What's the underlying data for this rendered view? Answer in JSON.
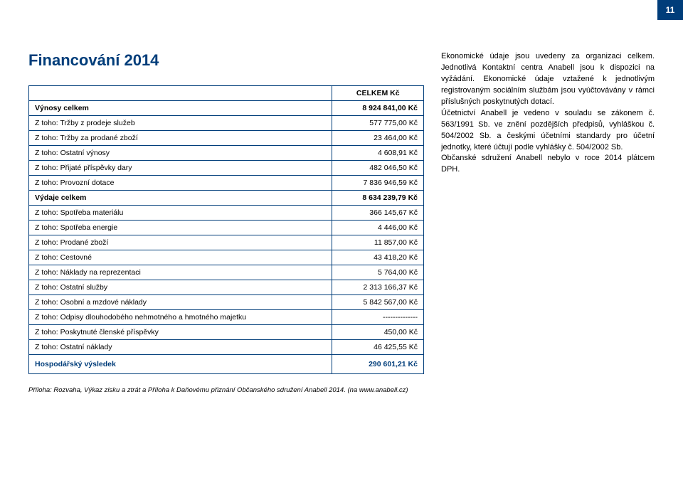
{
  "pageNumber": "11",
  "title": "Financování 2014",
  "table": {
    "headerLabel": "",
    "headerValue": "CELKEM Kč",
    "rows": [
      {
        "label": "Výnosy celkem",
        "value": "8 924 841,00 Kč",
        "bold": true
      },
      {
        "label": "Z toho: Tržby z prodeje služeb",
        "value": "577 775,00 Kč",
        "bold": false
      },
      {
        "label": "Z toho: Tržby za prodané zboží",
        "value": "23 464,00 Kč",
        "bold": false
      },
      {
        "label": "Z toho: Ostatní výnosy",
        "value": "4 608,91 Kč",
        "bold": false
      },
      {
        "label": "Z toho: Přijaté příspěvky dary",
        "value": "482 046,50 Kč",
        "bold": false
      },
      {
        "label": "Z toho: Provozní dotace",
        "value": "7 836 946,59 Kč",
        "bold": false
      },
      {
        "label": "Výdaje celkem",
        "value": "8 634 239,79 Kč",
        "bold": true
      },
      {
        "label": "Z toho: Spotřeba materiálu",
        "value": "366 145,67 Kč",
        "bold": false
      },
      {
        "label": "Z toho: Spotřeba energie",
        "value": "4 446,00 Kč",
        "bold": false
      },
      {
        "label": "Z toho: Prodané zboží",
        "value": "11 857,00 Kč",
        "bold": false
      },
      {
        "label": "Z toho: Cestovné",
        "value": "43 418,20 Kč",
        "bold": false
      },
      {
        "label": "Z toho: Náklady na reprezentaci",
        "value": "5 764,00 Kč",
        "bold": false
      },
      {
        "label": "Z toho: Ostatní služby",
        "value": "2 313 166,37 Kč",
        "bold": false
      },
      {
        "label": "Z toho: Osobní a mzdové náklady",
        "value": "5 842 567,00 Kč",
        "bold": false
      },
      {
        "label": "Z toho: Odpisy dlouhodobého nehmotného a hmotného majetku",
        "value": "--------------",
        "bold": false
      },
      {
        "label": "Z toho: Poskytnuté členské příspěvky",
        "value": "450,00 Kč",
        "bold": false
      },
      {
        "label": "Z toho: Ostatní náklady",
        "value": "46 425,55 Kč",
        "bold": false
      }
    ],
    "resultRow": {
      "label": "Hospodářský výsledek",
      "value": "290 601,21 Kč"
    }
  },
  "footnote": "Příloha: Rozvaha, Výkaz zisku a ztrát a Příloha k Daňovému přiznání Občanského sdružení Anabell 2014. (na www.anabell.cz)",
  "bodyText": "Ekonomické údaje jsou uvedeny za organizaci celkem. Jednotlivá Kontaktní centra Anabell jsou k dispozici na vyžádání. Ekonomické údaje vztažené k jednotlivým registrovaným sociálním službám jsou vyúčtovávány v rámci příslušných poskytnutých dotací.\nÚčetnictví Anabell je vedeno v souladu se zákonem č. 563/1991 Sb. ve znění pozdějších předpisů, vyhláškou č. 504/2002 Sb. a českými účetními standardy pro účetní jednotky, které účtují podle vyhlášky č. 504/2002 Sb.\nObčanské sdružení Anabell nebylo v roce 2014 plátcem DPH.",
  "colors": {
    "brand": "#003d7a",
    "text": "#000000",
    "background": "#ffffff"
  }
}
